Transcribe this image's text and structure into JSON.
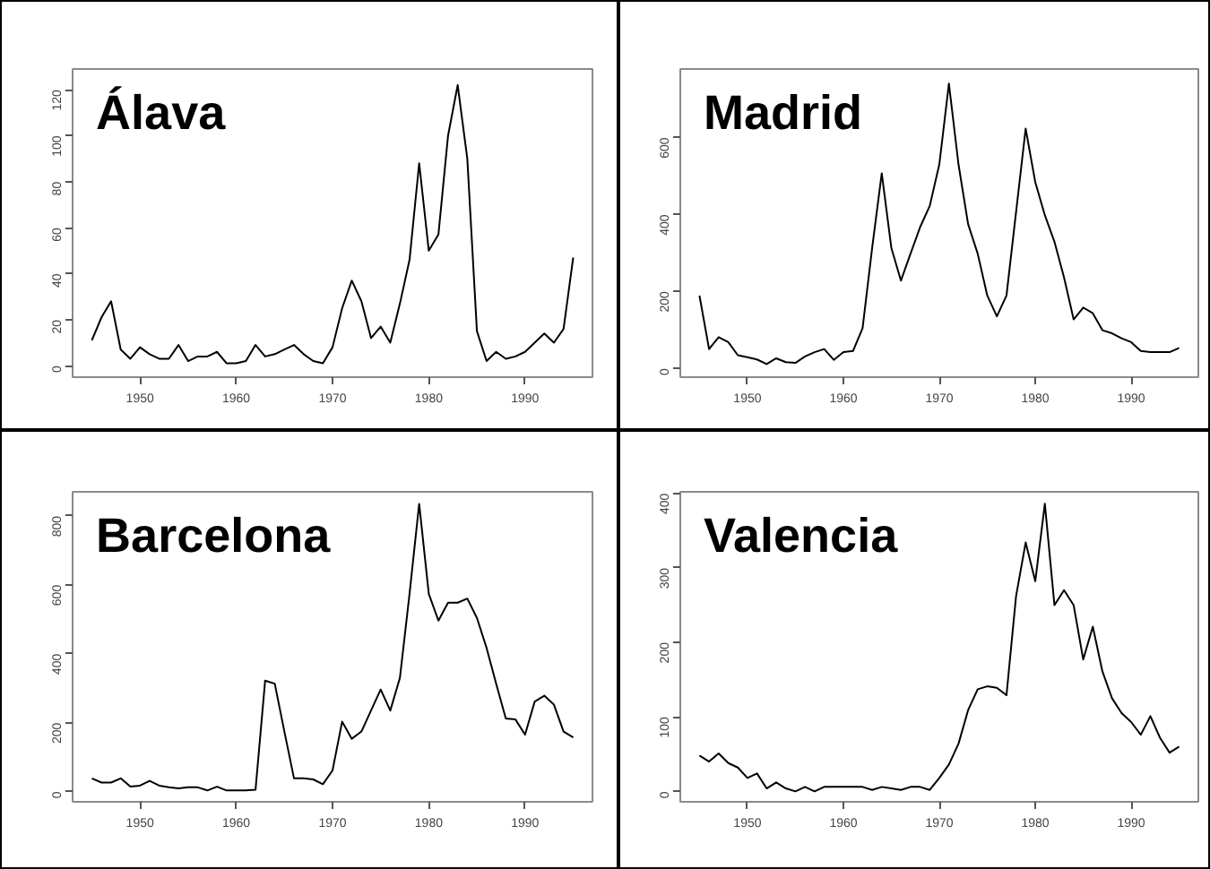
{
  "chart_data": [
    {
      "type": "line",
      "title": "Álava",
      "color": "#000000",
      "xlim": [
        1943,
        1997
      ],
      "ylim": [
        -5,
        129
      ],
      "xticks": [
        1950,
        1960,
        1970,
        1980,
        1990
      ],
      "yticks": [
        0,
        20,
        40,
        60,
        80,
        100,
        120
      ],
      "x": [
        1945,
        1946,
        1947,
        1948,
        1949,
        1950,
        1951,
        1952,
        1953,
        1954,
        1955,
        1956,
        1957,
        1958,
        1959,
        1960,
        1961,
        1962,
        1963,
        1964,
        1965,
        1966,
        1967,
        1968,
        1969,
        1970,
        1971,
        1972,
        1973,
        1974,
        1975,
        1976,
        1977,
        1978,
        1979,
        1980,
        1981,
        1982,
        1983,
        1984,
        1985,
        1986,
        1987,
        1988,
        1989,
        1990,
        1991,
        1992,
        1993,
        1994,
        1995
      ],
      "values": [
        11,
        21,
        28,
        7,
        3,
        8,
        5,
        3,
        3,
        9,
        2,
        4,
        4,
        6,
        1,
        1,
        2,
        9,
        4,
        5,
        7,
        9,
        5,
        2,
        1,
        8,
        25,
        37,
        28,
        12,
        17,
        10,
        27,
        46,
        88,
        50,
        57,
        100,
        122,
        90,
        15,
        2,
        6,
        3,
        4,
        6,
        10,
        14,
        10,
        16,
        47
      ]
    },
    {
      "type": "line",
      "title": "Madrid",
      "color": "#000000",
      "xlim": [
        1943,
        1997
      ],
      "ylim": [
        -23,
        778
      ],
      "xticks": [
        1950,
        1960,
        1970,
        1980,
        1990
      ],
      "yticks": [
        0,
        200,
        400,
        600
      ],
      "x": [
        1945,
        1946,
        1947,
        1948,
        1949,
        1950,
        1951,
        1952,
        1953,
        1954,
        1955,
        1956,
        1957,
        1958,
        1959,
        1960,
        1961,
        1962,
        1963,
        1964,
        1965,
        1966,
        1967,
        1968,
        1969,
        1970,
        1971,
        1972,
        1973,
        1974,
        1975,
        1976,
        1977,
        1978,
        1979,
        1980,
        1981,
        1982,
        1983,
        1984,
        1985,
        1986,
        1987,
        1988,
        1989,
        1990,
        1991,
        1992,
        1993,
        1994,
        1995
      ],
      "values": [
        189,
        50,
        81,
        68,
        34,
        29,
        23,
        11,
        26,
        16,
        14,
        31,
        42,
        50,
        22,
        42,
        45,
        104,
        313,
        507,
        313,
        228,
        298,
        367,
        422,
        530,
        740,
        530,
        375,
        298,
        189,
        135,
        189,
        406,
        623,
        484,
        398,
        329,
        236,
        127,
        158,
        143,
        99,
        91,
        78,
        68,
        45,
        42,
        42,
        42,
        53
      ]
    },
    {
      "type": "line",
      "title": "Barcelona",
      "color": "#000000",
      "xlim": [
        1943,
        1997
      ],
      "ylim": [
        -30,
        870
      ],
      "xticks": [
        1950,
        1960,
        1970,
        1980,
        1990
      ],
      "yticks": [
        0,
        200,
        400,
        600,
        800
      ],
      "x": [
        1945,
        1946,
        1947,
        1948,
        1949,
        1950,
        1951,
        1952,
        1953,
        1954,
        1955,
        1956,
        1957,
        1958,
        1959,
        1960,
        1961,
        1962,
        1963,
        1964,
        1965,
        1966,
        1967,
        1968,
        1969,
        1970,
        1971,
        1972,
        1973,
        1974,
        1975,
        1976,
        1977,
        1978,
        1979,
        1980,
        1981,
        1982,
        1983,
        1984,
        1985,
        1986,
        1987,
        1988,
        1989,
        1990,
        1991,
        1992,
        1993,
        1994,
        1995
      ],
      "values": [
        38,
        26,
        26,
        38,
        14,
        17,
        31,
        17,
        12,
        9,
        12,
        12,
        3,
        14,
        3,
        3,
        3,
        5,
        322,
        313,
        174,
        38,
        38,
        35,
        21,
        61,
        203,
        153,
        174,
        235,
        296,
        235,
        330,
        574,
        835,
        574,
        496,
        548,
        548,
        560,
        504,
        417,
        313,
        212,
        209,
        165,
        261,
        278,
        252,
        174,
        157
      ]
    },
    {
      "type": "line",
      "title": "Valencia",
      "color": "#000000",
      "xlim": [
        1943,
        1997
      ],
      "ylim": [
        -14,
        402
      ],
      "xticks": [
        1950,
        1960,
        1970,
        1980,
        1990
      ],
      "yticks": [
        0,
        100,
        200,
        300,
        400
      ],
      "x": [
        1945,
        1946,
        1947,
        1948,
        1949,
        1950,
        1951,
        1952,
        1953,
        1954,
        1955,
        1956,
        1957,
        1958,
        1959,
        1960,
        1961,
        1962,
        1963,
        1964,
        1965,
        1966,
        1967,
        1968,
        1969,
        1970,
        1971,
        1972,
        1973,
        1974,
        1975,
        1976,
        1977,
        1978,
        1979,
        1980,
        1981,
        1982,
        1983,
        1984,
        1985,
        1986,
        1987,
        1988,
        1989,
        1990,
        1991,
        1992,
        1993,
        1994,
        1995
      ],
      "values": [
        48,
        40,
        51,
        38,
        32,
        18,
        24,
        4,
        12,
        4,
        0,
        6,
        0,
        6,
        6,
        6,
        6,
        6,
        2,
        6,
        4,
        2,
        6,
        6,
        2,
        18,
        36,
        64,
        109,
        137,
        141,
        139,
        129,
        262,
        334,
        282,
        386,
        250,
        270,
        250,
        177,
        221,
        161,
        125,
        105,
        93,
        76,
        101,
        72,
        52,
        60
      ]
    }
  ]
}
